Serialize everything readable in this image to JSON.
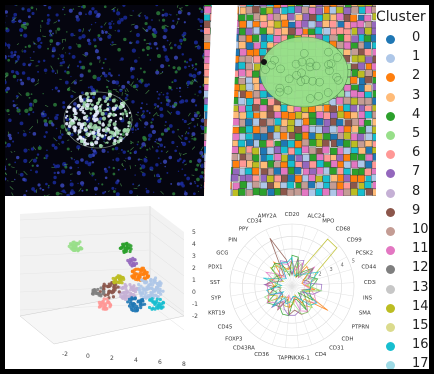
{
  "legend": {
    "title": "Cluster °",
    "items": [
      {
        "label": "0",
        "color": "#1f77b4"
      },
      {
        "label": "1",
        "color": "#aec7e8"
      },
      {
        "label": "2",
        "color": "#ff7f0e"
      },
      {
        "label": "3",
        "color": "#ffbb78"
      },
      {
        "label": "4",
        "color": "#2ca02c"
      },
      {
        "label": "5",
        "color": "#98df8a"
      },
      {
        "label": "6",
        "color": "#ff9896"
      },
      {
        "label": "7",
        "color": "#9467bd"
      },
      {
        "label": "8",
        "color": "#c5b0d5"
      },
      {
        "label": "9",
        "color": "#8c564b"
      },
      {
        "label": "10",
        "color": "#c49c94"
      },
      {
        "label": "11",
        "color": "#e377c2"
      },
      {
        "label": "12",
        "color": "#7f7f7f"
      },
      {
        "label": "13",
        "color": "#c7c7c7"
      },
      {
        "label": "14",
        "color": "#bcbd22"
      },
      {
        "label": "15",
        "color": "#dbdb8d"
      },
      {
        "label": "16",
        "color": "#17becf"
      },
      {
        "label": "17",
        "color": "#9edae5"
      }
    ]
  },
  "radar": {
    "markers": [
      "CD20",
      "ALC24",
      "MPO",
      "CD68",
      "CD99",
      "PCSK2",
      "CD44",
      "CD38",
      "INS",
      "SMA",
      "PTPRN",
      "CDH",
      "CD31",
      "CD4",
      "NKX6-1",
      "TAPP",
      "CD36",
      "CD43RA",
      "FOXP3",
      "CD45",
      "KRT19",
      "SYP",
      "SST",
      "PDX1",
      "GCG",
      "PIN",
      "PPY",
      "CD34",
      "AMY2A"
    ],
    "ticks": [
      "1",
      "2",
      "3",
      "4",
      "5"
    ]
  },
  "axes3d": {
    "xticks": [
      "-2",
      "0",
      "2",
      "4",
      "6",
      "8"
    ],
    "zticks": [
      "5",
      "4",
      "3",
      "2",
      "1",
      "0",
      "-1",
      "-2"
    ]
  }
}
